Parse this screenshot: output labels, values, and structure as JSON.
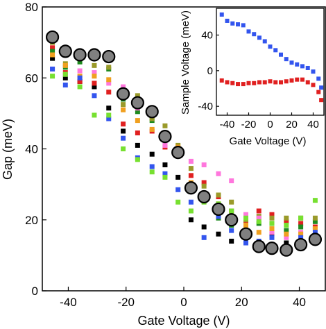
{
  "chart_data": [
    {
      "type": "scatter",
      "title": "",
      "xlabel": "Gate Voltage (V)",
      "ylabel": "Gap (meV)",
      "xlim": [
        -49,
        49
      ],
      "ylim": [
        0,
        80
      ],
      "xticks": [
        -40,
        -20,
        0,
        20,
        40
      ],
      "yticks": [
        0,
        20,
        40,
        60,
        80
      ],
      "grid": false,
      "x": [
        -45.5,
        -41,
        -36,
        -31,
        -26,
        -21,
        -16,
        -11,
        -6.5,
        -2,
        2.5,
        7,
        12,
        16.5,
        21.5,
        26,
        30.5,
        35.5,
        40.5,
        45.5
      ],
      "series": [
        {
          "color": "#808080",
          "marker": "circle",
          "values": [
            71.5,
            67.5,
            66.5,
            66.5,
            66,
            55.5,
            53,
            50.5,
            43.5,
            39,
            29,
            26.5,
            23,
            20,
            16,
            12.5,
            12,
            11.5,
            13,
            14.5
          ]
        },
        {
          "color": "#000000",
          "marker": "square",
          "values": [
            65.5,
            60,
            59,
            57.5,
            51.5,
            45,
            41,
            38.5,
            35.5,
            32,
            20,
            18,
            16,
            14,
            13.5,
            13,
            16,
            13.5,
            14,
            15
          ]
        },
        {
          "color": "#e02020",
          "marker": "square",
          "values": [
            68.5,
            61.5,
            59,
            58.5,
            56,
            47,
            44.5,
            45,
            40.5,
            38.5,
            32.5,
            30.5,
            26.5,
            22.5,
            19.5,
            22.5,
            21.5,
            19.5,
            19,
            18
          ]
        },
        {
          "color": "#1f8a1f",
          "marker": "square",
          "values": [
            67.5,
            63,
            64.5,
            65.5,
            62.5,
            54,
            50.5,
            48,
            44,
            39.5,
            28,
            27.5,
            20.5,
            18.5,
            16.5,
            19,
            19,
            17,
            18,
            19.5
          ]
        },
        {
          "color": "#9a9a2a",
          "marker": "square",
          "values": [
            70,
            64,
            66,
            63.5,
            63,
            52.5,
            55,
            48.5,
            46.5,
            41,
            34.5,
            29.5,
            27,
            25,
            20,
            21,
            20.5,
            20.5,
            20.5,
            20.5
          ]
        },
        {
          "color": "#ff77dd",
          "marker": "square",
          "values": [
            62.5,
            61,
            62,
            61.5,
            58.5,
            57.5,
            51.5,
            49.5,
            41,
            38,
            36.5,
            35.5,
            33,
            31,
            21.5,
            20.5,
            16.5,
            15,
            16.5,
            15
          ]
        },
        {
          "color": "#f0a020",
          "marker": "square",
          "values": [
            66.5,
            63.5,
            60.5,
            60.5,
            59.5,
            51,
            48,
            45.5,
            43,
            40.5,
            30.5,
            27,
            24.5,
            21,
            18.5,
            16.5,
            17.5,
            16,
            16,
            17.5
          ]
        },
        {
          "color": "#3355ee",
          "marker": "square",
          "values": [
            62.5,
            58,
            60,
            55,
            48.5,
            43,
            37.5,
            35,
            33,
            28.5,
            25,
            15,
            21,
            17,
            13.5,
            14,
            15,
            12,
            15,
            16.5
          ]
        },
        {
          "color": "#77e030",
          "marker": "square",
          "values": [
            60.5,
            61,
            57.5,
            49.5,
            49.5,
            40,
            37,
            33.5,
            32,
            25,
            22.5,
            25,
            24.5,
            22.5,
            20.5,
            19.5,
            19,
            18.5,
            20.5,
            25.5
          ]
        }
      ]
    },
    {
      "type": "scatter",
      "title": "",
      "xlabel": "Gate Voltage (V)",
      "ylabel": "Sample Voltage (meV)",
      "xlim": [
        -50,
        50
      ],
      "ylim": [
        -50,
        70
      ],
      "xticks": [
        -40,
        -20,
        0,
        20,
        40
      ],
      "yticks": [
        -40,
        0,
        40
      ],
      "grid": false,
      "x": [
        -45,
        -40,
        -35,
        -30,
        -25,
        -20,
        -15,
        -10,
        -5,
        0,
        5,
        10,
        15,
        20,
        25,
        30,
        35,
        40,
        45,
        47.5
      ],
      "series": [
        {
          "color": "#3355ee",
          "marker": "square",
          "values": [
            63,
            56,
            53,
            52,
            51,
            44,
            41,
            37,
            33,
            27,
            23,
            18,
            13,
            9,
            7,
            5,
            3,
            -1,
            -9,
            -19
          ]
        },
        {
          "color": "#e02020",
          "marker": "square",
          "values": [
            -11,
            -13,
            -14,
            -15,
            -15,
            -14,
            -14,
            -13,
            -13,
            -12,
            -13,
            -13,
            -12,
            -11,
            -10,
            -10,
            -13,
            -16,
            -24,
            -33
          ]
        }
      ]
    }
  ]
}
